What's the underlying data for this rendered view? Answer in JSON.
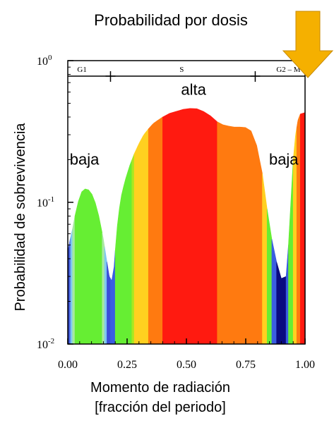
{
  "chart_data": {
    "type": "area",
    "title": "Probabilidad por dosis",
    "xlabel_lines": [
      "Momento de radiación",
      "[fracción del periodo]"
    ],
    "ylabel": "Probabilidad de sobrevivencia",
    "x_ticks": [
      "0.00",
      "0.25",
      "0.50",
      "0.75",
      "1.00"
    ],
    "x_tick_values": [
      0,
      0.25,
      0.5,
      0.75,
      1.0
    ],
    "y_scale": "log",
    "xlim": [
      0,
      1
    ],
    "ylim": [
      0.01,
      1
    ],
    "y_ticks": [
      {
        "base": "10",
        "exp": "0",
        "value": 1
      },
      {
        "base": "10",
        "exp": "-1",
        "value": 0.1
      },
      {
        "base": "10",
        "exp": "-2",
        "value": 0.01
      }
    ],
    "phases": [
      {
        "label": "G1",
        "x": 0.06
      },
      {
        "label": "S",
        "x": 0.48
      },
      {
        "label": "G2 – M",
        "x": 0.93
      }
    ],
    "phase_boundaries": [
      0.18,
      0.79
    ],
    "annotations": [
      {
        "text": "baja",
        "x": 0.07,
        "y": 0.2
      },
      {
        "text": "alta",
        "x": 0.53,
        "y": 0.62
      },
      {
        "text": "baja",
        "x": 0.91,
        "y": 0.2
      }
    ],
    "curve": [
      [
        0.0,
        0.045
      ],
      [
        0.01,
        0.055
      ],
      [
        0.02,
        0.065
      ],
      [
        0.03,
        0.08
      ],
      [
        0.04,
        0.095
      ],
      [
        0.05,
        0.11
      ],
      [
        0.06,
        0.12
      ],
      [
        0.075,
        0.125
      ],
      [
        0.09,
        0.122
      ],
      [
        0.105,
        0.112
      ],
      [
        0.12,
        0.095
      ],
      [
        0.135,
        0.075
      ],
      [
        0.15,
        0.055
      ],
      [
        0.165,
        0.038
      ],
      [
        0.175,
        0.03
      ],
      [
        0.185,
        0.028
      ],
      [
        0.195,
        0.035
      ],
      [
        0.205,
        0.06
      ],
      [
        0.215,
        0.085
      ],
      [
        0.225,
        0.11
      ],
      [
        0.24,
        0.14
      ],
      [
        0.26,
        0.18
      ],
      [
        0.28,
        0.22
      ],
      [
        0.3,
        0.26
      ],
      [
        0.32,
        0.3
      ],
      [
        0.34,
        0.33
      ],
      [
        0.36,
        0.36
      ],
      [
        0.38,
        0.38
      ],
      [
        0.4,
        0.4
      ],
      [
        0.42,
        0.42
      ],
      [
        0.44,
        0.43
      ],
      [
        0.46,
        0.44
      ],
      [
        0.48,
        0.45
      ],
      [
        0.5,
        0.46
      ],
      [
        0.52,
        0.46
      ],
      [
        0.54,
        0.46
      ],
      [
        0.56,
        0.45
      ],
      [
        0.58,
        0.43
      ],
      [
        0.6,
        0.41
      ],
      [
        0.62,
        0.38
      ],
      [
        0.64,
        0.36
      ],
      [
        0.66,
        0.35
      ],
      [
        0.68,
        0.345
      ],
      [
        0.7,
        0.34
      ],
      [
        0.72,
        0.34
      ],
      [
        0.74,
        0.34
      ],
      [
        0.76,
        0.335
      ],
      [
        0.78,
        0.31
      ],
      [
        0.8,
        0.24
      ],
      [
        0.82,
        0.16
      ],
      [
        0.84,
        0.09
      ],
      [
        0.86,
        0.055
      ],
      [
        0.88,
        0.038
      ],
      [
        0.9,
        0.029
      ],
      [
        0.92,
        0.03
      ],
      [
        0.93,
        0.05
      ],
      [
        0.94,
        0.1
      ],
      [
        0.95,
        0.2
      ],
      [
        0.96,
        0.3
      ],
      [
        0.97,
        0.38
      ],
      [
        0.98,
        0.42
      ],
      [
        1.0,
        0.43
      ]
    ],
    "color_bands": [
      {
        "x0": 0.0,
        "x1": 0.005,
        "color": "#1a1aa0"
      },
      {
        "x0": 0.005,
        "x1": 0.012,
        "color": "#4a6ae0"
      },
      {
        "x0": 0.012,
        "x1": 0.02,
        "color": "#7ec8f0"
      },
      {
        "x0": 0.02,
        "x1": 0.03,
        "color": "#a8e8a0"
      },
      {
        "x0": 0.03,
        "x1": 0.145,
        "color": "#66ee33"
      },
      {
        "x0": 0.145,
        "x1": 0.155,
        "color": "#a8e8a0"
      },
      {
        "x0": 0.155,
        "x1": 0.165,
        "color": "#7ec8f0"
      },
      {
        "x0": 0.165,
        "x1": 0.18,
        "color": "#3a4ed8"
      },
      {
        "x0": 0.18,
        "x1": 0.2,
        "color": "#3a5ee0"
      },
      {
        "x0": 0.2,
        "x1": 0.27,
        "color": "#66ee33"
      },
      {
        "x0": 0.27,
        "x1": 0.28,
        "color": "#a8e820"
      },
      {
        "x0": 0.28,
        "x1": 0.34,
        "color": "#ffd020"
      },
      {
        "x0": 0.34,
        "x1": 0.4,
        "color": "#ff7a10"
      },
      {
        "x0": 0.4,
        "x1": 0.63,
        "color": "#ff1a10"
      },
      {
        "x0": 0.63,
        "x1": 0.82,
        "color": "#ff7a10"
      },
      {
        "x0": 0.82,
        "x1": 0.84,
        "color": "#ffd020"
      },
      {
        "x0": 0.84,
        "x1": 0.86,
        "color": "#66ee33"
      },
      {
        "x0": 0.86,
        "x1": 0.88,
        "color": "#3a5ee0"
      },
      {
        "x0": 0.88,
        "x1": 0.92,
        "color": "#0a0a80"
      },
      {
        "x0": 0.92,
        "x1": 0.93,
        "color": "#3a5ee0"
      },
      {
        "x0": 0.93,
        "x1": 0.95,
        "color": "#66ee33"
      },
      {
        "x0": 0.95,
        "x1": 0.965,
        "color": "#ffd020"
      },
      {
        "x0": 0.965,
        "x1": 0.98,
        "color": "#ff7a10"
      },
      {
        "x0": 0.98,
        "x1": 1.0,
        "color": "#ff1a10"
      }
    ]
  },
  "marker": {
    "icon": "arrow-down-icon",
    "x": 1.0,
    "color": "#f5b000"
  }
}
